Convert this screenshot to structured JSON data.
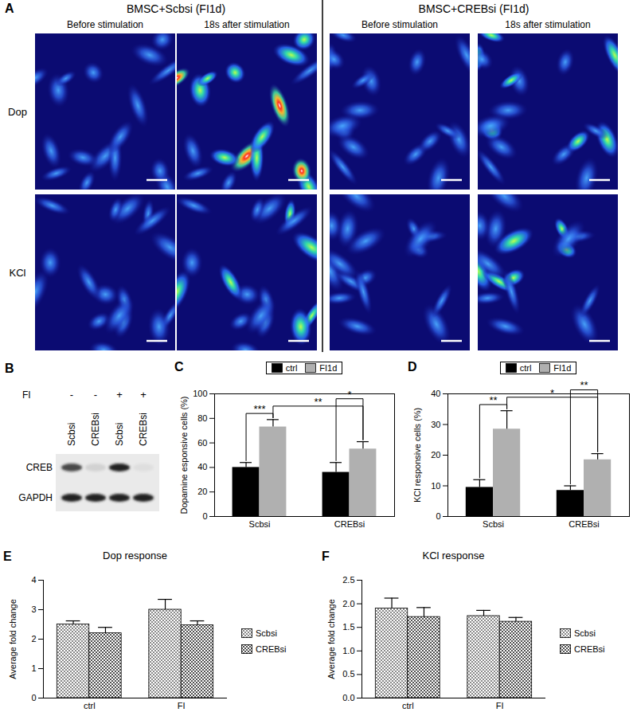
{
  "panel_a": {
    "label": "A",
    "groups": [
      {
        "title": "BMSC+Scbsi (FI1d)",
        "columns": [
          "Before stimulation",
          "18s after stimulation"
        ]
      },
      {
        "title": "BMSC+CREBsi (FI1d)",
        "columns": [
          "Before stimulation",
          "18s after stimulation"
        ]
      }
    ],
    "rows": [
      "Dop",
      "KCl"
    ]
  },
  "panel_b": {
    "label": "B",
    "treatment_label": "FI",
    "treatment": [
      "-",
      "-",
      "+",
      "+"
    ],
    "lanes": [
      "Scbsi",
      "CREBsi",
      "Scbsi",
      "CREBsi"
    ],
    "bands": [
      {
        "name": "CREB",
        "intensity": [
          0.8,
          0.1,
          1.0,
          0.05
        ]
      },
      {
        "name": "GAPDH",
        "intensity": [
          1,
          1,
          1,
          1
        ]
      }
    ]
  },
  "chart_data": [
    {
      "panel": "C",
      "type": "bar",
      "ylabel": "Dopamine esponsive cells (%)",
      "categories": [
        "Scbsi",
        "CREBsi"
      ],
      "series": [
        {
          "name": "ctrl",
          "color": "#000000",
          "values": [
            40,
            36
          ],
          "errors": [
            4,
            8
          ]
        },
        {
          "name": "FI1d",
          "color": "#b0b0b0",
          "values": [
            73,
            55
          ],
          "errors": [
            6,
            6
          ]
        }
      ],
      "ylim": [
        0,
        100
      ],
      "yticks": [
        0,
        20,
        40,
        60,
        80,
        100
      ],
      "grid": false,
      "legend": "top",
      "annotations": [
        {
          "text": "***",
          "between": [
            [
              "Scbsi",
              "ctrl"
            ],
            [
              "Scbsi",
              "FI1d"
            ]
          ]
        },
        {
          "text": "**",
          "between": [
            [
              "Scbsi",
              "FI1d"
            ],
            [
              "CREBsi",
              "FI1d"
            ]
          ]
        },
        {
          "text": "*",
          "between": [
            [
              "CREBsi",
              "ctrl"
            ],
            [
              "CREBsi",
              "FI1d"
            ]
          ]
        }
      ]
    },
    {
      "panel": "D",
      "type": "bar",
      "ylabel": "KCl responsive cells (%)",
      "categories": [
        "Scbsi",
        "CREBsi"
      ],
      "series": [
        {
          "name": "ctrl",
          "color": "#000000",
          "values": [
            9.5,
            8.5
          ],
          "errors": [
            2.5,
            1.5
          ]
        },
        {
          "name": "FI1d",
          "color": "#b0b0b0",
          "values": [
            28.5,
            18.5
          ],
          "errors": [
            6,
            2
          ]
        }
      ],
      "ylim": [
        0,
        40
      ],
      "yticks": [
        0,
        10,
        20,
        30,
        40
      ],
      "grid": false,
      "legend": "top",
      "annotations": [
        {
          "text": "**",
          "between": [
            [
              "Scbsi",
              "ctrl"
            ],
            [
              "Scbsi",
              "FI1d"
            ]
          ]
        },
        {
          "text": "*",
          "between": [
            [
              "Scbsi",
              "FI1d"
            ],
            [
              "CREBsi",
              "FI1d"
            ]
          ]
        },
        {
          "text": "**",
          "between": [
            [
              "CREBsi",
              "ctrl"
            ],
            [
              "CREBsi",
              "FI1d"
            ]
          ]
        }
      ]
    },
    {
      "panel": "E",
      "type": "bar",
      "title": "Dop response",
      "ylabel": "Average fold change",
      "categories": [
        "ctrl",
        "FI"
      ],
      "series": [
        {
          "name": "Scbsi",
          "color": "#505050",
          "values": [
            2.5,
            3.0
          ],
          "errors": [
            0.12,
            0.35
          ]
        },
        {
          "name": "CREBsi",
          "color": "#505050",
          "values": [
            2.2,
            2.47
          ],
          "errors": [
            0.2,
            0.15
          ]
        }
      ],
      "ylim": [
        0,
        4
      ],
      "yticks": [
        0,
        1,
        2,
        3,
        4
      ],
      "grid": false,
      "legend": "right"
    },
    {
      "panel": "F",
      "type": "bar",
      "title": "KCl response",
      "ylabel": "Average fold change",
      "categories": [
        "ctrl",
        "FI"
      ],
      "series": [
        {
          "name": "Scbsi",
          "color": "#505050",
          "values": [
            1.9,
            1.74
          ],
          "errors": [
            0.22,
            0.12
          ]
        },
        {
          "name": "CREBsi",
          "color": "#505050",
          "values": [
            1.72,
            1.62
          ],
          "errors": [
            0.2,
            0.09
          ]
        }
      ],
      "ylim": [
        0,
        2.5
      ],
      "yticks": [
        {
          "value": 0,
          "label": "0.0"
        },
        0.5,
        {
          "value": 1,
          "label": "1.0"
        },
        1.5,
        {
          "value": 2,
          "label": "2.0"
        },
        2.5
      ],
      "grid": false,
      "legend": "right"
    }
  ]
}
